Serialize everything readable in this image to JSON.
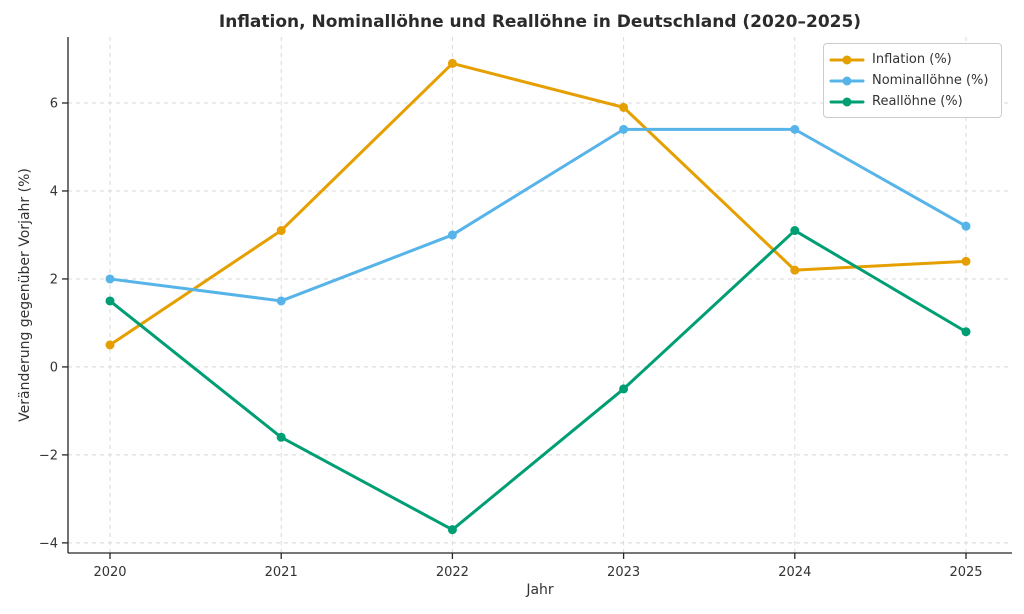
{
  "chart_data": {
    "type": "line",
    "title": "Inflation, Nominallöhne und Reallöhne in Deutschland (2020–2025)",
    "xlabel": "Jahr",
    "ylabel": "Veränderung gegenüber Vorjahr (%)",
    "categories": [
      "2020",
      "2021",
      "2022",
      "2023",
      "2024",
      "2025"
    ],
    "series": [
      {
        "name": "Inflation (%)",
        "color": "#E69F00",
        "values": [
          0.5,
          3.1,
          6.9,
          5.9,
          2.2,
          2.4
        ]
      },
      {
        "name": "Nominallöhne (%)",
        "color": "#56B4E9",
        "values": [
          2.0,
          1.5,
          3.0,
          5.4,
          5.4,
          3.2
        ]
      },
      {
        "name": "Reallöhne (%)",
        "color": "#009E73",
        "values": [
          1.5,
          -1.6,
          -3.7,
          -0.5,
          3.1,
          0.8
        ]
      }
    ],
    "yticks": [
      -4,
      -2,
      0,
      2,
      4,
      6
    ],
    "ylim": [
      -4.23,
      7.5
    ],
    "grid": true,
    "grid_style": "dashed",
    "legend_position": "upper right",
    "marker": "circle",
    "colors": {
      "axis": "#262626",
      "grid": "#d8d8d8",
      "text": "#333333",
      "background": "#ffffff"
    }
  }
}
